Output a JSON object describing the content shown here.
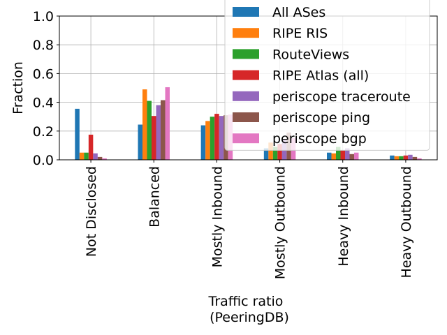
{
  "chart_data": {
    "type": "bar",
    "xlabel_lines": [
      "Traffic ratio",
      "(PeeringDB)"
    ],
    "ylabel": "Fraction",
    "ylim": [
      0,
      1.0
    ],
    "yticks": [
      0.0,
      0.2,
      0.4,
      0.6,
      0.8,
      1.0
    ],
    "ytick_labels": [
      "0.0",
      "0.2",
      "0.4",
      "0.6",
      "0.8",
      "1.0"
    ],
    "grid": true,
    "legend_position": "top-right",
    "categories": [
      "Not Disclosed",
      "Balanced",
      "Mostly Inbound",
      "Mostly Outbound",
      "Heavy Inbound",
      "Heavy Outbound"
    ],
    "series": [
      {
        "name": "All ASes",
        "color": "#1f77b4",
        "values": [
          0.355,
          0.245,
          0.24,
          0.08,
          0.05,
          0.03
        ]
      },
      {
        "name": "RIPE RIS",
        "color": "#ff7f0e",
        "values": [
          0.05,
          0.49,
          0.27,
          0.12,
          0.045,
          0.025
        ]
      },
      {
        "name": "RouteViews",
        "color": "#2ca02c",
        "values": [
          0.05,
          0.41,
          0.3,
          0.09,
          0.09,
          0.025
        ]
      },
      {
        "name": "RIPE Atlas (all)",
        "color": "#d62728",
        "values": [
          0.175,
          0.305,
          0.32,
          0.11,
          0.065,
          0.03
        ]
      },
      {
        "name": "periscope traceroute",
        "color": "#9467bd",
        "values": [
          0.045,
          0.38,
          0.305,
          0.14,
          0.08,
          0.035
        ]
      },
      {
        "name": "periscope ping",
        "color": "#8c564b",
        "values": [
          0.02,
          0.415,
          0.31,
          0.19,
          0.04,
          0.02
        ]
      },
      {
        "name": "periscope bgp",
        "color": "#e377c2",
        "values": [
          0.01,
          0.505,
          0.315,
          0.15,
          0.05,
          0.01
        ]
      }
    ]
  }
}
